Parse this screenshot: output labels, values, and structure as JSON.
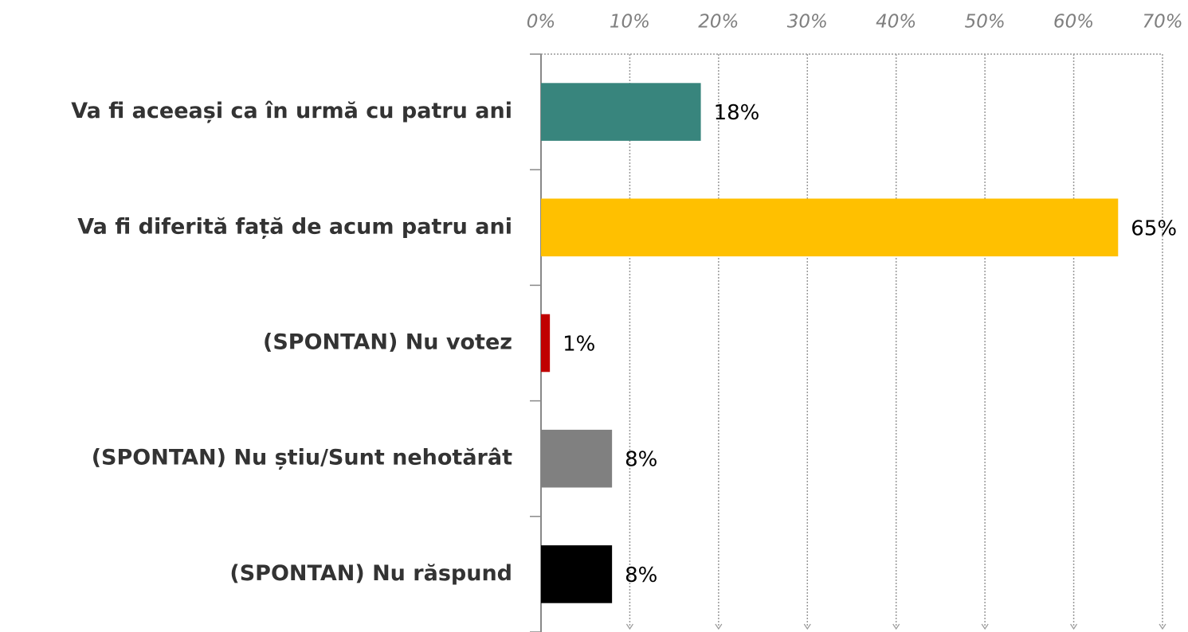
{
  "chart_data": {
    "type": "bar",
    "categories": [
      "Va fi aceeași ca în urmă cu patru ani",
      "Va fi diferită față de acum patru ani",
      "(SPONTAN) Nu votez",
      "(SPONTAN) Nu știu/Sunt nehotărât",
      "(SPONTAN) Nu răspund"
    ],
    "values": [
      18,
      65,
      1,
      8,
      8
    ],
    "value_labels": [
      "18%",
      "65%",
      "1%",
      "8%",
      "8%"
    ],
    "colors": [
      "#38857d",
      "#ffc000",
      "#c00000",
      "#808080",
      "#000000"
    ],
    "xlim": [
      0,
      70
    ],
    "xticks": [
      {
        "value": 0,
        "label": "0%"
      },
      {
        "value": 10,
        "label": "10%"
      },
      {
        "value": 20,
        "label": "20%"
      },
      {
        "value": 30,
        "label": "30%"
      },
      {
        "value": 40,
        "label": "40%"
      },
      {
        "value": 50,
        "label": "50%"
      },
      {
        "value": 60,
        "label": "60%"
      },
      {
        "value": 70,
        "label": "70%"
      }
    ],
    "grid": true
  }
}
